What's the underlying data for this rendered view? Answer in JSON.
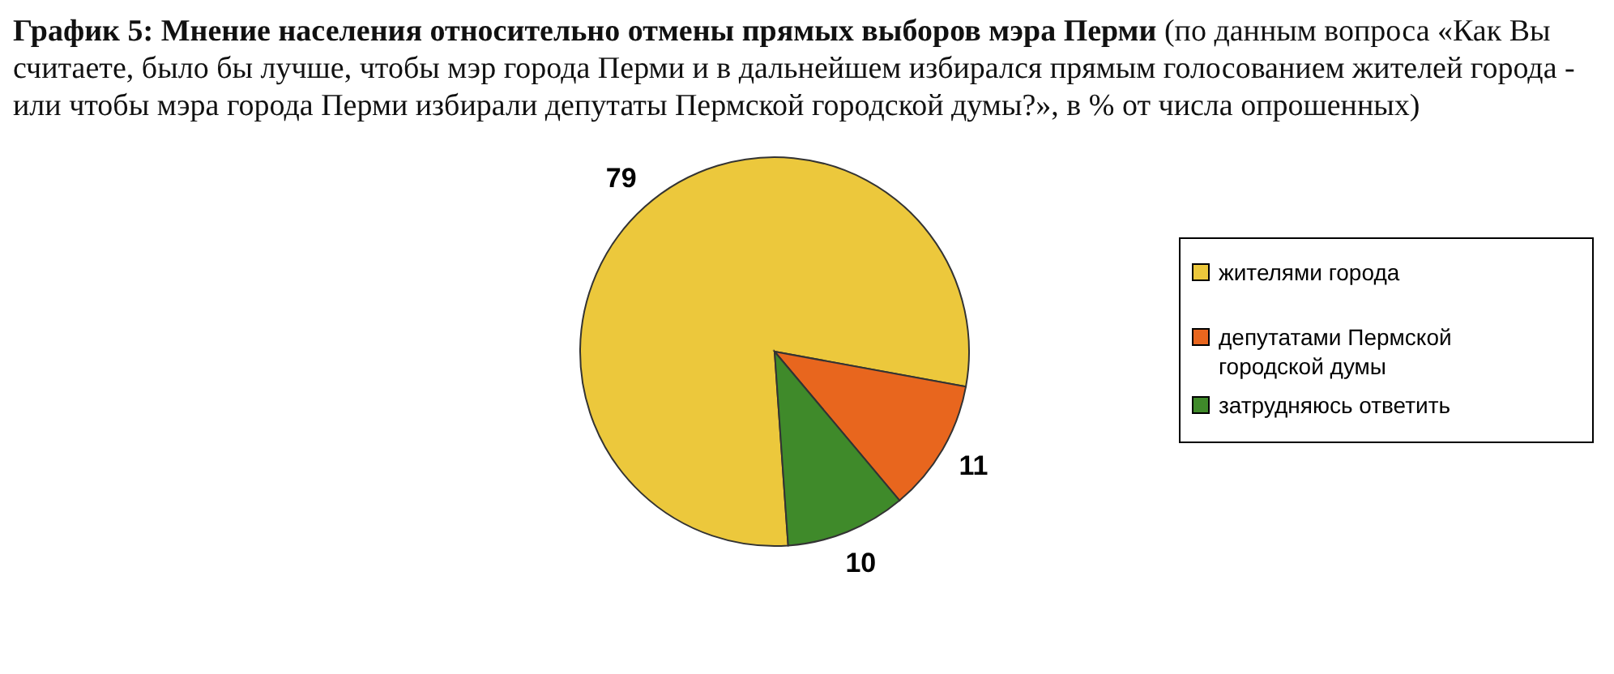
{
  "chart_data": {
    "type": "pie",
    "title": "График 5: Мнение населения относительно отмены прямых выборов мэра Перми",
    "subtitle": "(по данным вопроса «Как Вы считаете, было бы лучше, чтобы мэр города Перми и в дальнейшем избирался прямым голосованием жителей города - или  чтобы мэра города Перми избирали депутаты Пермской городской думы?»,  в % от числа опрошенных)",
    "categories": [
      "жителями города",
      "депутатами Пермской городской думы",
      "затрудняюсь ответить"
    ],
    "values": [
      79,
      11,
      10
    ],
    "colors": [
      "#ecc83c",
      "#e8661e",
      "#3f8a2a"
    ],
    "data_labels": true,
    "legend": "right"
  }
}
